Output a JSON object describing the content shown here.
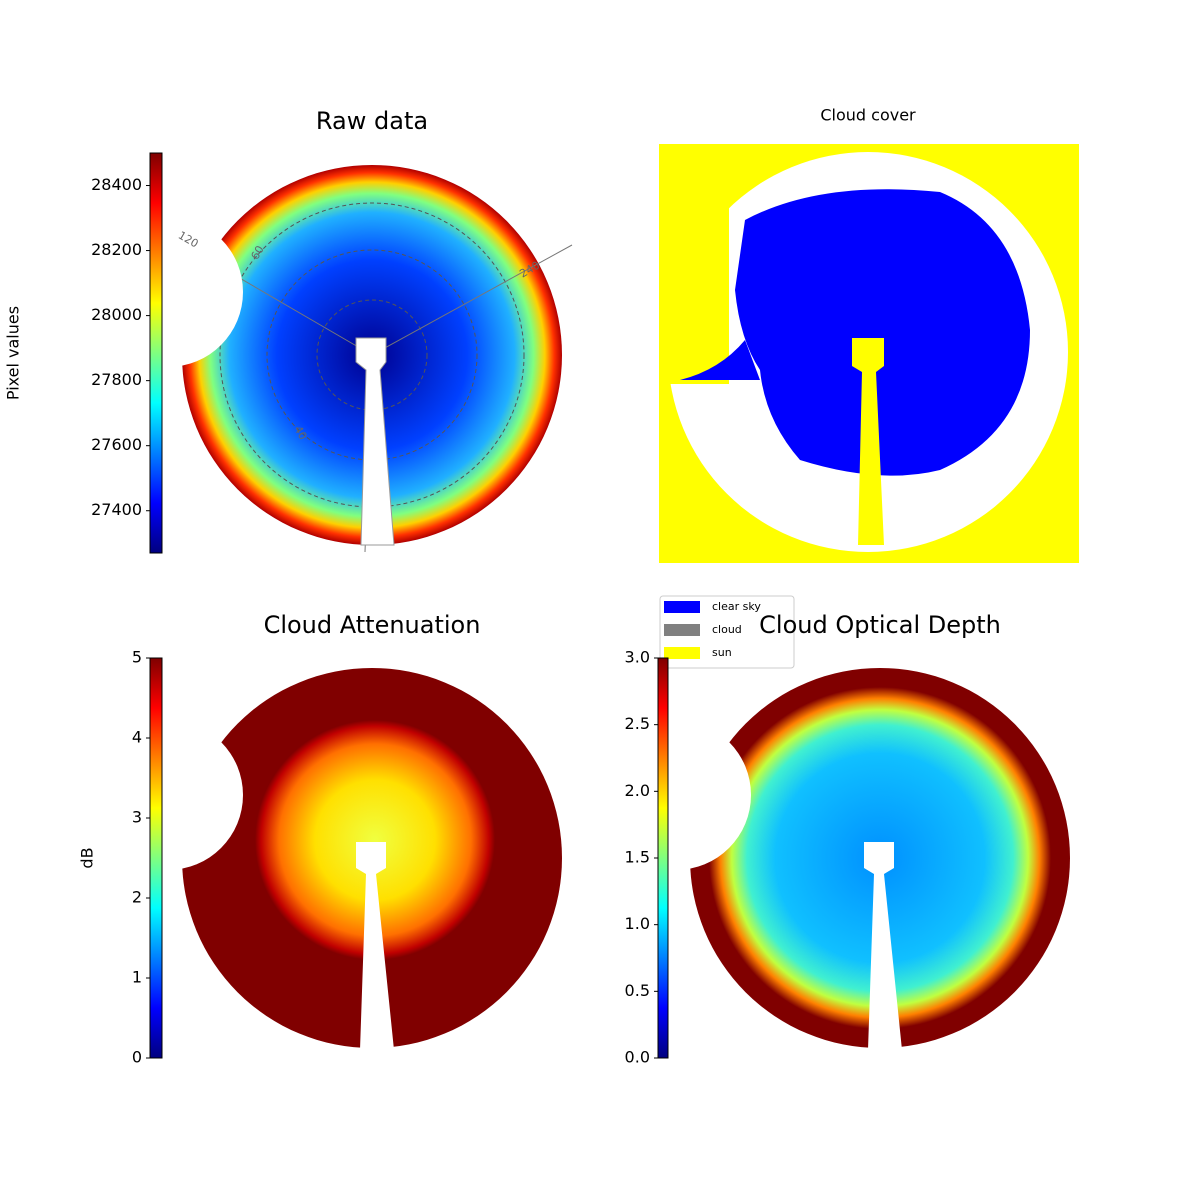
{
  "chart_data": [
    {
      "type": "image",
      "title": "Raw data",
      "colorbar": {
        "label": "Pixel values",
        "lim": [
          27270,
          28500
        ],
        "ticks": [
          27400,
          27600,
          27800,
          28000,
          28200,
          28400
        ]
      },
      "annotations": [
        "120",
        "60",
        "240",
        "40"
      ]
    },
    {
      "type": "image",
      "title": "Cloud cover",
      "legend": [
        {
          "name": "clear sky",
          "color": "#0000ff"
        },
        {
          "name": "cloud",
          "color": "#808080"
        },
        {
          "name": "sun",
          "color": "#ffff00"
        }
      ]
    },
    {
      "type": "image",
      "title": "Cloud Attenuation",
      "colorbar": {
        "label": "dB",
        "lim": [
          0,
          5
        ],
        "ticks": [
          0,
          1,
          2,
          3,
          4,
          5
        ]
      }
    },
    {
      "type": "image",
      "title": "Cloud Optical Depth",
      "colorbar": {
        "lim": [
          0,
          3
        ],
        "ticks": [
          {
            "value": 0,
            "label": "0.0"
          },
          0.5,
          {
            "value": 1,
            "label": "1.0"
          },
          1.5,
          {
            "value": 2,
            "label": "2.0"
          },
          2.5,
          {
            "value": 3,
            "label": "3.0"
          }
        ]
      }
    }
  ]
}
